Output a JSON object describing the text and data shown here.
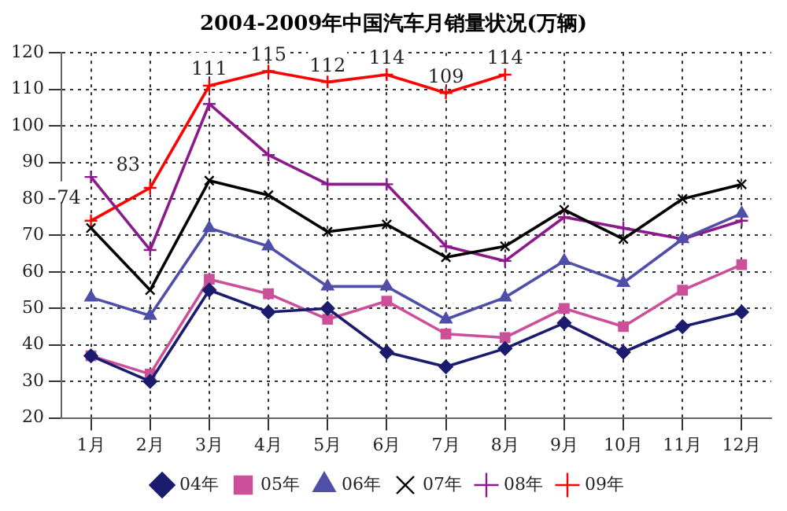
{
  "chart_data": {
    "type": "line",
    "title": "2004-2009年中国汽车月销量状况(万辆)",
    "categories": [
      "1月",
      "2月",
      "3月",
      "4月",
      "5月",
      "6月",
      "7月",
      "8月",
      "9月",
      "10月",
      "11月",
      "12月"
    ],
    "ylim": [
      20,
      120
    ],
    "yticks": [
      20,
      30,
      40,
      50,
      60,
      70,
      80,
      90,
      100,
      110,
      120
    ],
    "grid": true,
    "legend": "bottom",
    "line_style": "solid",
    "series": [
      {
        "name": "04年",
        "color": "#1c1c6e",
        "marker": "diamond",
        "values": [
          37,
          30,
          55,
          49,
          50,
          38,
          34,
          39,
          46,
          38,
          45,
          49
        ]
      },
      {
        "name": "05年",
        "color": "#cc4f9a",
        "marker": "square",
        "values": [
          37,
          32,
          58,
          54,
          47,
          52,
          43,
          42,
          50,
          45,
          55,
          62
        ]
      },
      {
        "name": "06年",
        "color": "#4f4fa8",
        "marker": "triangle",
        "values": [
          53,
          48,
          72,
          67,
          56,
          56,
          47,
          53,
          63,
          57,
          69,
          76
        ]
      },
      {
        "name": "07年",
        "color": "#000000",
        "marker": "cross",
        "values": [
          72,
          55,
          85,
          81,
          71,
          73,
          64,
          67,
          77,
          69,
          80,
          84
        ]
      },
      {
        "name": "08年",
        "color": "#8b1a8b",
        "marker": "cross",
        "values": [
          86,
          66,
          106,
          92,
          84,
          84,
          67,
          63,
          75,
          72,
          69,
          74
        ]
      },
      {
        "name": "09年",
        "color": "#ff0000",
        "marker": "cross",
        "values": [
          74,
          83,
          111,
          115,
          112,
          114,
          109,
          114,
          null,
          null,
          null,
          null
        ],
        "value_labels": [
          "74",
          "83",
          "111",
          "115",
          "112",
          "114",
          "109",
          "114",
          null,
          null,
          null,
          null
        ]
      }
    ]
  }
}
